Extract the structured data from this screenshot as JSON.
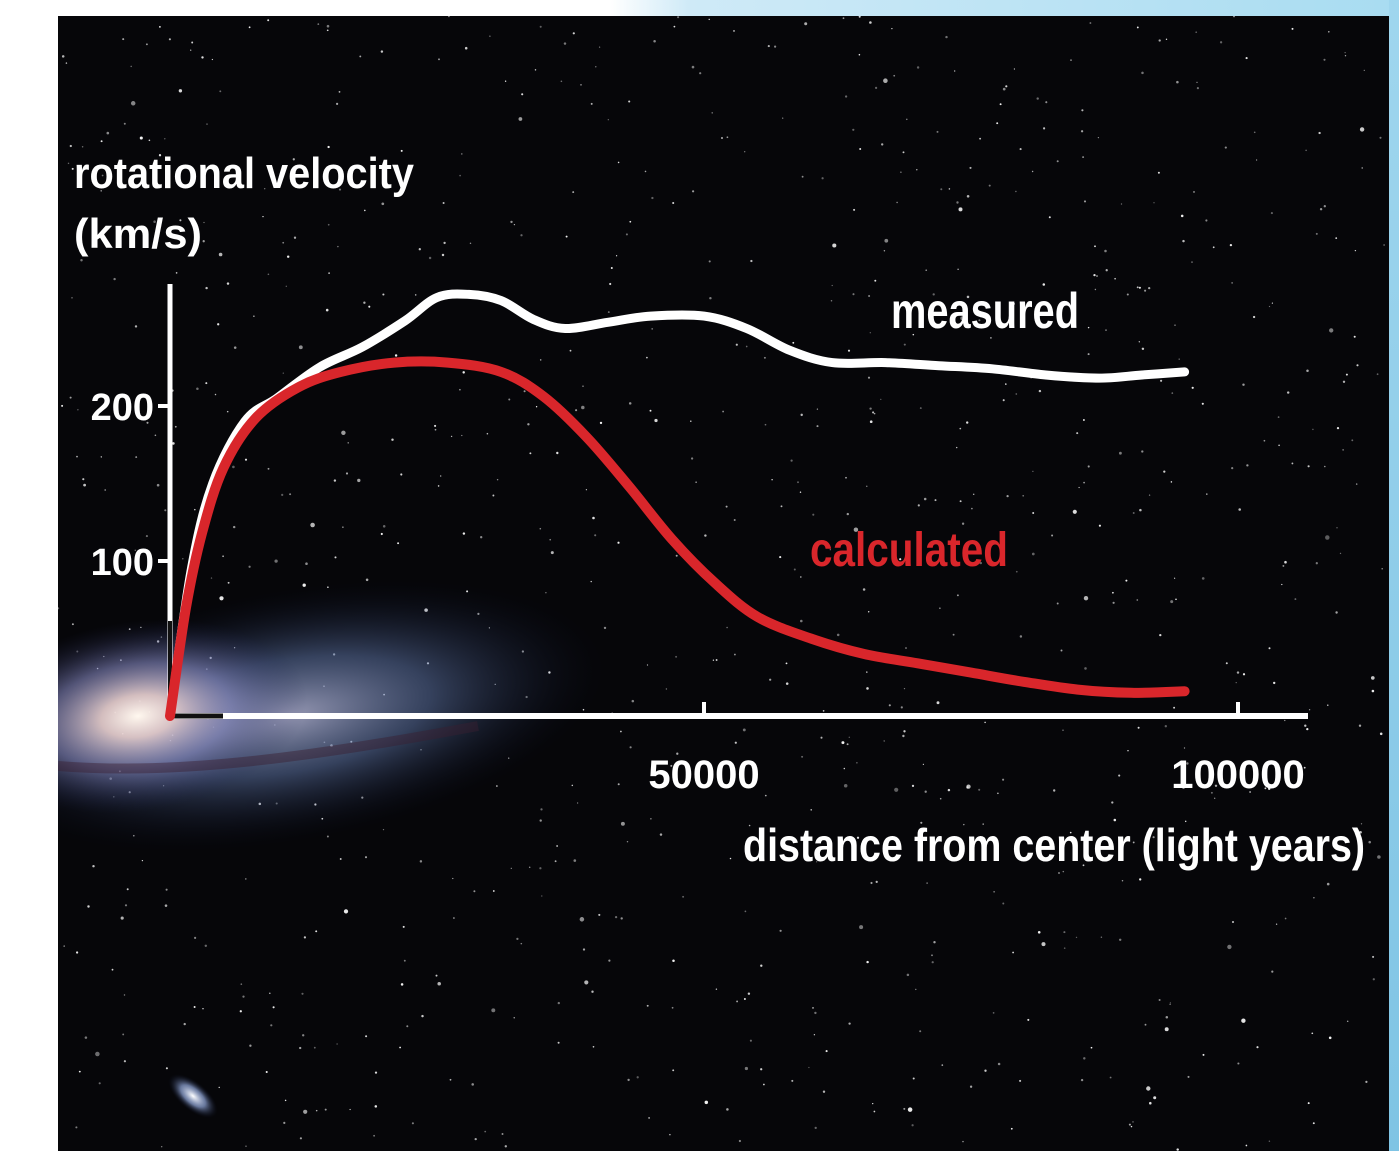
{
  "chart_data": {
    "type": "line",
    "ylabel_line1": "rotational velocity",
    "ylabel_line2": "(km/s)",
    "xlabel": "distance from center (light years)",
    "xlim": [
      0,
      105000
    ],
    "ylim": [
      0,
      280
    ],
    "x_ticks": [
      {
        "value": 50000,
        "label": "50000"
      },
      {
        "value": 100000,
        "label": "100000"
      }
    ],
    "y_ticks": [
      {
        "value": 100,
        "label": "100"
      },
      {
        "value": 200,
        "label": "200"
      }
    ],
    "series": [
      {
        "name": "measured",
        "color": "#ffffff",
        "points": [
          [
            0,
            0
          ],
          [
            2000,
            95
          ],
          [
            4000,
            150
          ],
          [
            7000,
            190
          ],
          [
            10000,
            205
          ],
          [
            14000,
            225
          ],
          [
            18000,
            238
          ],
          [
            22000,
            255
          ],
          [
            25000,
            270
          ],
          [
            28000,
            272
          ],
          [
            31000,
            268
          ],
          [
            34000,
            256
          ],
          [
            37000,
            250
          ],
          [
            41000,
            254
          ],
          [
            45000,
            258
          ],
          [
            50000,
            258
          ],
          [
            54000,
            250
          ],
          [
            58000,
            236
          ],
          [
            62000,
            228
          ],
          [
            67000,
            228
          ],
          [
            72000,
            226
          ],
          [
            77000,
            224
          ],
          [
            82000,
            220
          ],
          [
            87000,
            218
          ],
          [
            91000,
            220
          ],
          [
            95000,
            222
          ]
        ]
      },
      {
        "name": "calculated",
        "color": "#d9262b",
        "points": [
          [
            0,
            0
          ],
          [
            1500,
            70
          ],
          [
            3000,
            118
          ],
          [
            5000,
            160
          ],
          [
            8000,
            192
          ],
          [
            12000,
            212
          ],
          [
            16000,
            222
          ],
          [
            21000,
            228
          ],
          [
            26000,
            228
          ],
          [
            31000,
            222
          ],
          [
            35000,
            206
          ],
          [
            39000,
            180
          ],
          [
            43000,
            148
          ],
          [
            47000,
            114
          ],
          [
            51000,
            86
          ],
          [
            55000,
            64
          ],
          [
            60000,
            50
          ],
          [
            65000,
            40
          ],
          [
            70000,
            34
          ],
          [
            75000,
            28
          ],
          [
            80000,
            22
          ],
          [
            85000,
            17
          ],
          [
            90000,
            15
          ],
          [
            95000,
            16
          ]
        ]
      }
    ],
    "legend": "series labels placed next to each curve"
  }
}
